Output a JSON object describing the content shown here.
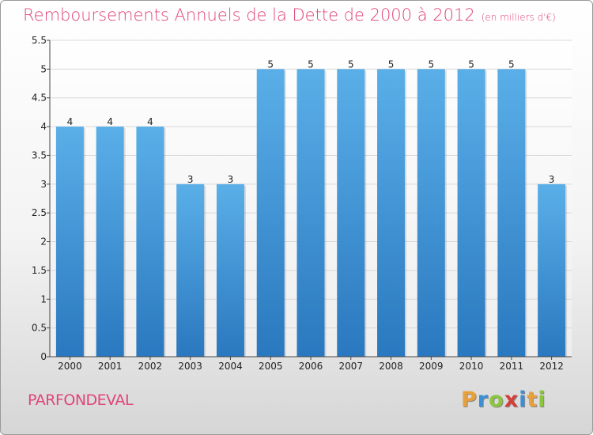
{
  "header": {
    "title": "Remboursements Annuels de la Dette de 2000 à 2012",
    "unit": "(en milliers d'€)"
  },
  "footer": {
    "place": "PARFONDEVAL",
    "logo": [
      "P",
      "r",
      "o",
      "x",
      "i",
      "t",
      "i"
    ]
  },
  "colors": {
    "accent": "#e0457a",
    "bar_top": "#5aafe8",
    "bar_bottom": "#2a78bf"
  },
  "chart_data": {
    "type": "bar",
    "title": "Remboursements Annuels de la Dette de 2000 à 2012",
    "xlabel": "",
    "ylabel": "",
    "categories": [
      "2000",
      "2001",
      "2002",
      "2003",
      "2004",
      "2005",
      "2006",
      "2007",
      "2008",
      "2009",
      "2010",
      "2011",
      "2012"
    ],
    "values": [
      4,
      4,
      4,
      3,
      3,
      5,
      5,
      5,
      5,
      5,
      5,
      5,
      3
    ],
    "data_labels": [
      "4",
      "4",
      "4",
      "3",
      "3",
      "5",
      "5",
      "5",
      "5",
      "5",
      "5",
      "5",
      "3"
    ],
    "ylim": [
      0,
      5.5
    ],
    "yticks": [
      "0",
      "0.5",
      "1",
      "1.5",
      "2",
      "2.5",
      "3",
      "3.5",
      "4",
      "4.5",
      "5",
      "5.5"
    ],
    "grid": true
  }
}
